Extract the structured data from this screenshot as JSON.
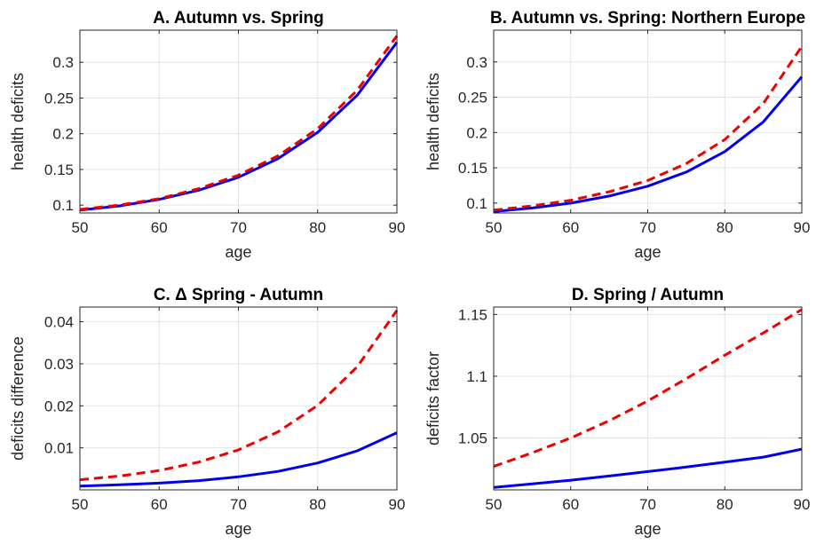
{
  "chart_data": [
    {
      "type": "line",
      "title": "A. Autumn vs. Spring",
      "xlabel": "age",
      "ylabel": "health deficits",
      "xlim": [
        50,
        90
      ],
      "ylim": [
        0.089,
        0.345
      ],
      "xticks": [
        50,
        60,
        70,
        80,
        90
      ],
      "xtick_labels": [
        "50",
        "60",
        "70",
        "80",
        "90"
      ],
      "yticks": [
        0.1,
        0.15,
        0.2,
        0.25,
        0.3
      ],
      "ytick_labels": [
        "0.1",
        "0.15",
        "0.2",
        "0.25",
        "0.3"
      ],
      "grid": true,
      "x": [
        50,
        55,
        60,
        65,
        70,
        75,
        80,
        85,
        90
      ],
      "series": [
        {
          "style": "solid",
          "color": "#0000ee",
          "values": [
            0.093,
            0.099,
            0.108,
            0.121,
            0.139,
            0.165,
            0.202,
            0.254,
            0.328
          ]
        },
        {
          "style": "dashed",
          "color": "#ee0000",
          "values": [
            0.094,
            0.1,
            0.109,
            0.123,
            0.142,
            0.169,
            0.207,
            0.261,
            0.337
          ]
        }
      ]
    },
    {
      "type": "line",
      "title": "B. Autumn vs. Spring: Northern Europe",
      "xlabel": "age",
      "ylabel": "health deficits",
      "xlim": [
        50,
        90
      ],
      "ylim": [
        0.086,
        0.345
      ],
      "xticks": [
        50,
        60,
        70,
        80,
        90
      ],
      "xtick_labels": [
        "50",
        "60",
        "70",
        "80",
        "90"
      ],
      "yticks": [
        0.1,
        0.15,
        0.2,
        0.25,
        0.3
      ],
      "ytick_labels": [
        "0.1",
        "0.15",
        "0.2",
        "0.25",
        "0.3"
      ],
      "grid": true,
      "x": [
        50,
        55,
        60,
        65,
        70,
        75,
        80,
        85,
        90
      ],
      "series": [
        {
          "style": "solid",
          "color": "#0000ee",
          "values": [
            0.088,
            0.093,
            0.1,
            0.11,
            0.124,
            0.144,
            0.173,
            0.215,
            0.279
          ]
        },
        {
          "style": "dashed",
          "color": "#ee0000",
          "values": [
            0.09,
            0.096,
            0.104,
            0.116,
            0.132,
            0.156,
            0.19,
            0.241,
            0.322
          ]
        }
      ]
    },
    {
      "type": "line",
      "title": "C. Δ Spring - Autumn",
      "xlabel": "age",
      "ylabel": "deficits difference",
      "xlim": [
        50,
        90
      ],
      "ylim": [
        0,
        0.0435
      ],
      "xticks": [
        50,
        60,
        70,
        80,
        90
      ],
      "xtick_labels": [
        "50",
        "60",
        "70",
        "80",
        "90"
      ],
      "yticks": [
        0.01,
        0.02,
        0.03,
        0.04
      ],
      "ytick_labels": [
        "0.01",
        "0.02",
        "0.03",
        "0.04"
      ],
      "grid": true,
      "x": [
        50,
        55,
        60,
        65,
        70,
        75,
        80,
        85,
        90
      ],
      "series": [
        {
          "style": "solid",
          "color": "#0000ee",
          "values": [
            0.0009,
            0.0012,
            0.0016,
            0.0022,
            0.0031,
            0.0044,
            0.0064,
            0.0093,
            0.0136
          ]
        },
        {
          "style": "dashed",
          "color": "#ee0000",
          "values": [
            0.0024,
            0.0033,
            0.0046,
            0.0066,
            0.0095,
            0.0138,
            0.0201,
            0.0293,
            0.0427
          ]
        }
      ]
    },
    {
      "type": "line",
      "title": "D. Spring / Autumn",
      "xlabel": "age",
      "ylabel": "deficits factor",
      "xlim": [
        50,
        90
      ],
      "ylim": [
        1.008,
        1.156
      ],
      "xticks": [
        50,
        60,
        70,
        80,
        90
      ],
      "xtick_labels": [
        "50",
        "60",
        "70",
        "80",
        "90"
      ],
      "yticks": [
        1.05,
        1.1,
        1.15
      ],
      "ytick_labels": [
        "1.05",
        "1.1",
        "1.15"
      ],
      "grid": true,
      "x": [
        50,
        55,
        60,
        65,
        70,
        75,
        80,
        85,
        90
      ],
      "series": [
        {
          "style": "solid",
          "color": "#0000ee",
          "values": [
            1.01,
            1.0128,
            1.0158,
            1.0192,
            1.0228,
            1.0265,
            1.0305,
            1.0345,
            1.041
          ]
        },
        {
          "style": "dashed",
          "color": "#ee0000",
          "values": [
            1.027,
            1.038,
            1.05,
            1.064,
            1.08,
            1.098,
            1.117,
            1.135,
            1.154
          ]
        }
      ]
    }
  ]
}
